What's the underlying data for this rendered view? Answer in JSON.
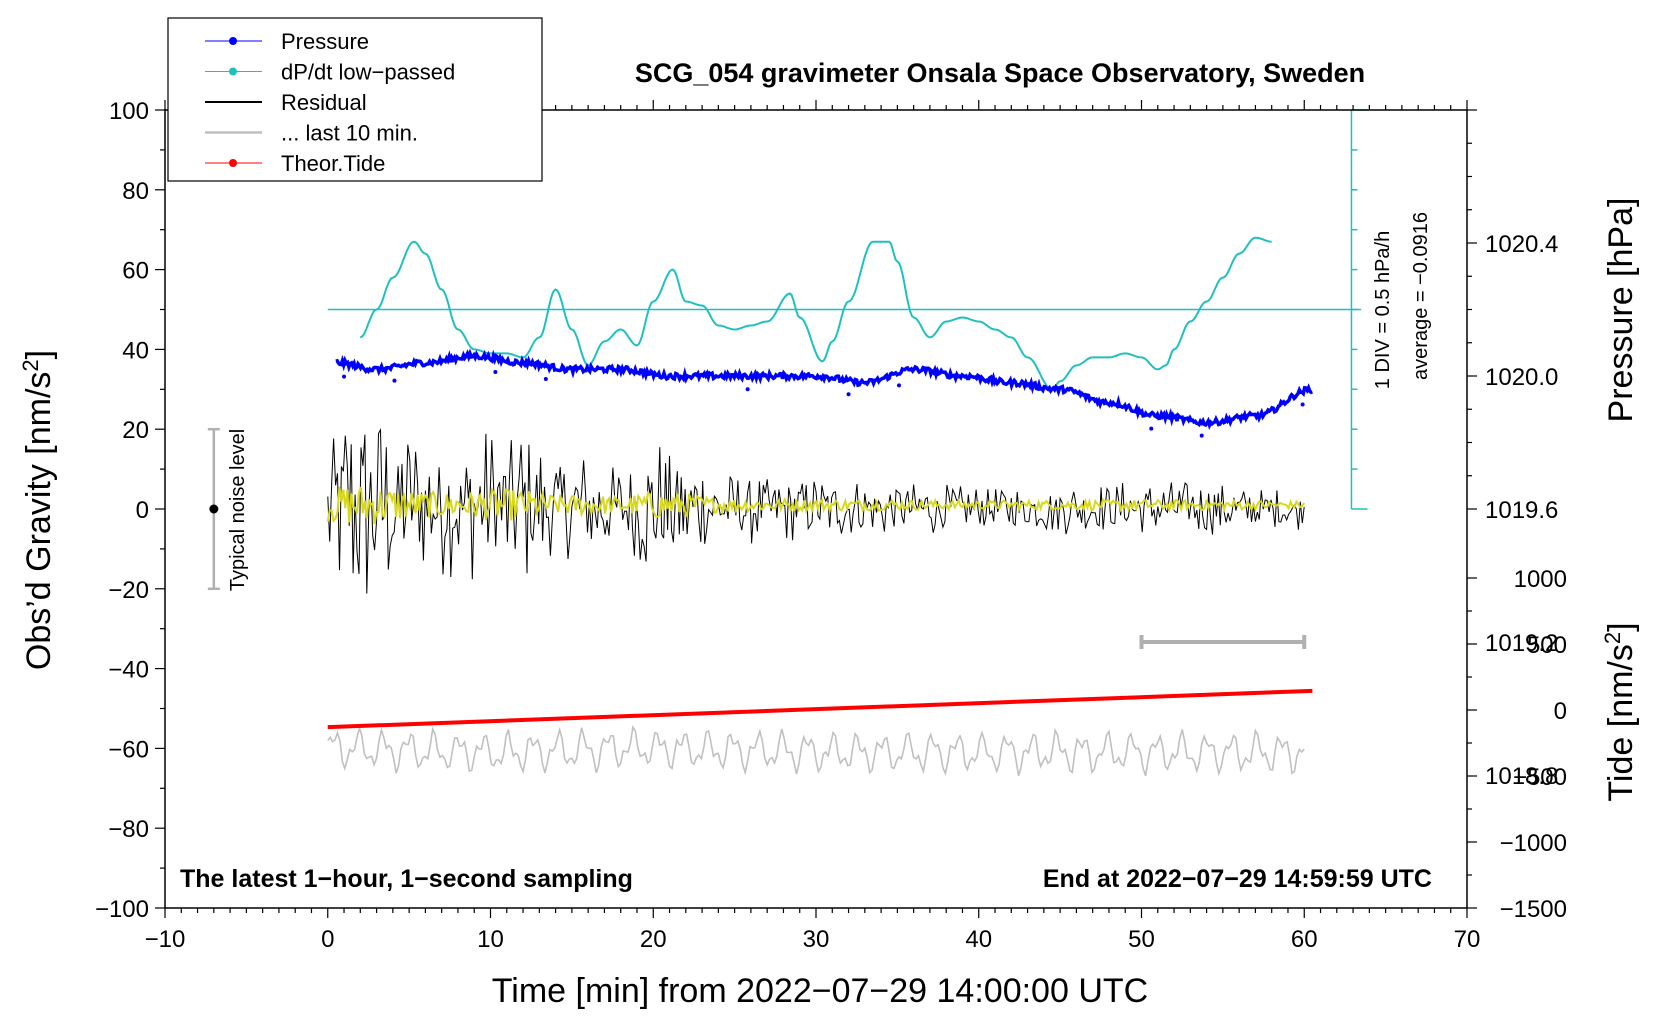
{
  "chart_data": {
    "type": "line",
    "title": "SCG_054 gravimeter Onsala Space Observatory, Sweden",
    "xlabel": "Time [min] from 2022−07−29 14:00:00 UTC",
    "ylabel": "Obs’d Gravity [nm/s",
    "ylabel_sup": "2",
    "ylabel_close": "]",
    "y2label": "Pressure [hPa]",
    "y3label": "Tide [nm/s",
    "y3label_sup": "2",
    "y3label_close": "]",
    "xlim": [
      -10,
      70
    ],
    "ylim": [
      -100,
      100
    ],
    "pressure_lim": [
      1018.4,
      1020.8
    ],
    "tide_lim": [
      -1500,
      1500
    ],
    "x_ticks": [
      "−10",
      "0",
      "10",
      "20",
      "30",
      "40",
      "50",
      "60",
      "70"
    ],
    "x_tick_values": [
      -10,
      0,
      10,
      20,
      30,
      40,
      50,
      60,
      70
    ],
    "y_ticks": [
      "100",
      "80",
      "60",
      "40",
      "20",
      "0",
      "−20",
      "−40",
      "−60",
      "−80",
      "−100"
    ],
    "y_tick_values": [
      100,
      80,
      60,
      40,
      20,
      0,
      -20,
      -40,
      -60,
      -80,
      -100
    ],
    "pressure_ticks": [
      "1020.4",
      "1020.0",
      "1019.6",
      "1019.2",
      "1018.8"
    ],
    "pressure_tick_values": [
      1020.4,
      1020.0,
      1019.6,
      1019.2,
      1018.8
    ],
    "tide_ticks": [
      "1000",
      "500",
      "0",
      "−500",
      "−1000",
      "−1500"
    ],
    "tide_tick_values": [
      1000,
      500,
      0,
      -500,
      -1000,
      -1500
    ],
    "legend": {
      "placement": "top-left",
      "entries": [
        {
          "label": "Pressure",
          "color": "#0000ff",
          "marker": true
        },
        {
          "label": "dP/dt low−passed",
          "color": "#20c0c0",
          "marker": true
        },
        {
          "label": "Residual",
          "color": "#000000",
          "marker": false
        },
        {
          "label": "... last 10 min.",
          "color": "#c0c0c0",
          "marker": false
        },
        {
          "label": "Theor.Tide",
          "color": "#ff0000",
          "marker": true
        }
      ]
    },
    "series": [
      {
        "name": "Pressure",
        "axis": "pressure",
        "color": "#0000ff",
        "x": [
          0.5,
          3,
          6,
          9,
          12,
          15,
          18,
          21,
          24,
          27,
          30,
          33,
          36,
          39,
          42,
          45,
          48,
          51,
          54,
          57,
          60.5
        ],
        "values": [
          1020.04,
          1020.02,
          1020.04,
          1020.06,
          1020.04,
          1020.02,
          1020.02,
          1020.0,
          1020.0,
          1020.0,
          1020.0,
          1019.98,
          1020.02,
          1020.0,
          1019.98,
          1019.96,
          1019.92,
          1019.88,
          1019.86,
          1019.88,
          1019.96
        ]
      },
      {
        "name": "dP/dt low−passed",
        "axis": "gravity",
        "color": "#20c0c0",
        "x": [
          2,
          3,
          4,
          5.3,
          6,
          7,
          8,
          9,
          10,
          11,
          12,
          13,
          14,
          15,
          16,
          17,
          18,
          19,
          20,
          21.2,
          22,
          23,
          24,
          25,
          26,
          27,
          28.4,
          29,
          30.4,
          31,
          32,
          33.5,
          34.5,
          35,
          36,
          37,
          38,
          39,
          40,
          41,
          42,
          43,
          44.5,
          45,
          46,
          47,
          48,
          49,
          50,
          51,
          51.5,
          52,
          53,
          54,
          55,
          56,
          57,
          58
        ],
        "values": [
          43,
          50,
          58,
          67,
          64,
          55,
          45,
          40,
          39,
          39,
          38,
          43,
          55,
          45,
          36,
          42,
          45,
          41,
          52,
          60,
          52,
          51,
          46,
          45,
          46,
          47,
          54,
          48,
          37,
          42,
          52,
          67,
          67,
          62,
          48,
          43,
          47,
          48,
          47,
          45,
          43,
          38,
          30,
          32,
          36,
          38,
          38,
          39,
          38,
          35,
          36,
          40,
          47,
          52,
          58,
          64,
          68,
          67
        ]
      },
      {
        "name": "Residual",
        "axis": "gravity",
        "color": "#000000",
        "x": [
          0,
          2,
          4,
          6,
          8,
          10,
          12,
          14,
          16,
          18,
          20,
          22,
          24,
          30,
          40,
          50,
          55,
          60
        ],
        "values": [
          0,
          5,
          0,
          5,
          2,
          0,
          5,
          0,
          1,
          0,
          0,
          0,
          0,
          0,
          0,
          0,
          0,
          -2
        ],
        "envelope_amplitude": [
          20,
          25,
          20,
          15,
          15,
          18,
          18,
          12,
          12,
          10,
          16,
          14,
          8,
          7,
          5,
          6,
          6,
          4
        ]
      },
      {
        "name": "... last 10 min.",
        "axis": "gravity",
        "color": "#c0c0c0",
        "x": [
          0,
          10,
          20,
          30,
          40,
          50,
          60
        ],
        "values": [
          -60,
          -61,
          -60,
          -61,
          -61,
          -61,
          -61
        ]
      },
      {
        "name": "Theor.Tide",
        "axis": "tide",
        "color": "#ff0000",
        "x": [
          0,
          60.5
        ],
        "values": [
          -130,
          145
        ]
      }
    ],
    "annotations": {
      "noise_label": "Typical noise level",
      "noise_range": [
        -20,
        20
      ],
      "noise_x": -7,
      "scale_label": "1 DIV = 0.5 hPa/h",
      "average_label": "average = −0.0916",
      "note_left": "The latest 1−hour, 1−second sampling",
      "note_right": "End at 2022−07−29 14:59:59 UTC",
      "last10_bar": [
        50,
        60
      ],
      "dpdt_zero": 50
    }
  }
}
